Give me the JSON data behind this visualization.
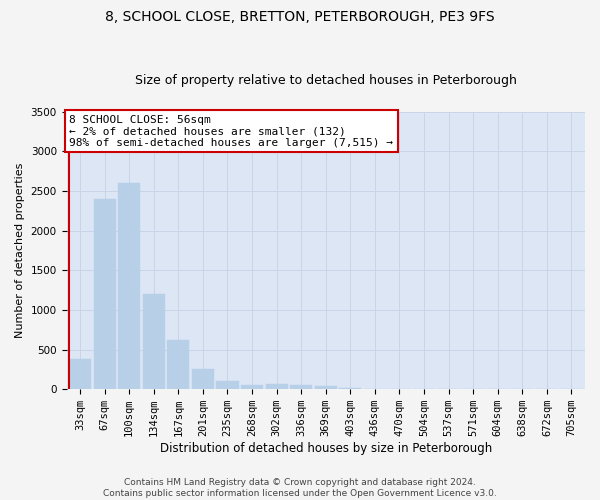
{
  "title1": "8, SCHOOL CLOSE, BRETTON, PETERBOROUGH, PE3 9FS",
  "title2": "Size of property relative to detached houses in Peterborough",
  "xlabel": "Distribution of detached houses by size in Peterborough",
  "ylabel": "Number of detached properties",
  "categories": [
    "33sqm",
    "67sqm",
    "100sqm",
    "134sqm",
    "167sqm",
    "201sqm",
    "235sqm",
    "268sqm",
    "302sqm",
    "336sqm",
    "369sqm",
    "403sqm",
    "436sqm",
    "470sqm",
    "504sqm",
    "537sqm",
    "571sqm",
    "604sqm",
    "638sqm",
    "672sqm",
    "705sqm"
  ],
  "values": [
    375,
    2400,
    2600,
    1200,
    620,
    250,
    110,
    55,
    60,
    50,
    35,
    10,
    5,
    3,
    2,
    2,
    1,
    1,
    1,
    1,
    1
  ],
  "bar_color": "#b8cfe8",
  "bar_edge_color": "#b8cfe8",
  "highlight_line_color": "#cc0000",
  "annotation_text": "8 SCHOOL CLOSE: 56sqm\n← 2% of detached houses are smaller (132)\n98% of semi-detached houses are larger (7,515) →",
  "annotation_box_color": "#ffffff",
  "annotation_box_edge_color": "#cc0000",
  "ylim": [
    0,
    3500
  ],
  "yticks": [
    0,
    500,
    1000,
    1500,
    2000,
    2500,
    3000,
    3500
  ],
  "grid_color": "#c8d4e8",
  "background_color": "#dce6f5",
  "fig_background_color": "#f4f4f4",
  "footnote": "Contains HM Land Registry data © Crown copyright and database right 2024.\nContains public sector information licensed under the Open Government Licence v3.0.",
  "title1_fontsize": 10,
  "title2_fontsize": 9,
  "xlabel_fontsize": 8.5,
  "ylabel_fontsize": 8,
  "annotation_fontsize": 8,
  "tick_fontsize": 7.5,
  "footnote_fontsize": 6.5
}
